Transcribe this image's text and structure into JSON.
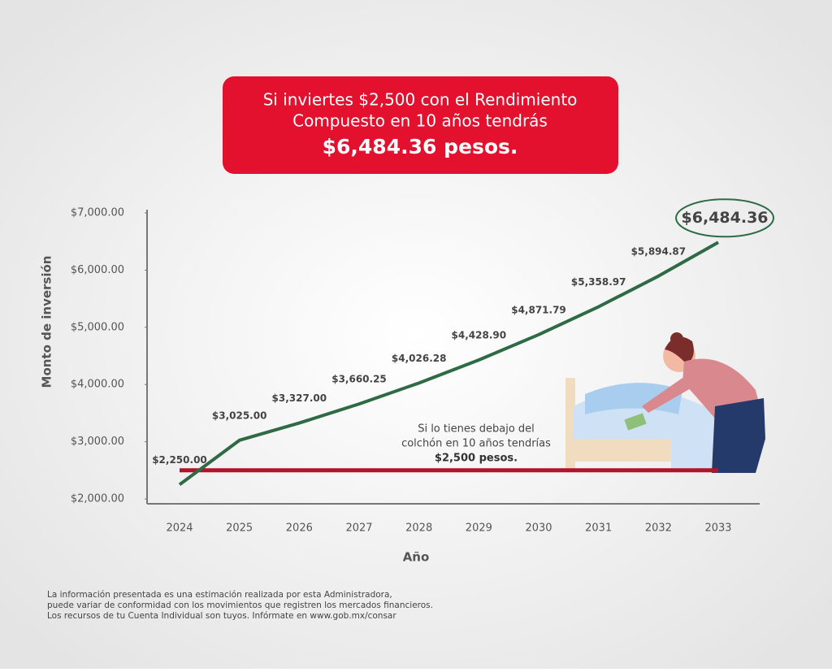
{
  "chart_data": {
    "type": "line",
    "title_lines": [
      "Si inviertes $2,500 con el Rendimiento",
      "Compuesto en 10 años tendrás"
    ],
    "title_highlight": "$6,484.36 pesos.",
    "x_label": "Año",
    "y_label": "Monto de inversión",
    "categories": [
      "2024",
      "2025",
      "2026",
      "2027",
      "2028",
      "2029",
      "2030",
      "2031",
      "2032",
      "2033"
    ],
    "series": [
      {
        "color": "#2e6b45",
        "values": [
          2250,
          3025,
          3327,
          3660.25,
          4026.28,
          4428.9,
          4871.79,
          5358.97,
          5894.87,
          6484.36
        ],
        "value_labels": [
          "$2,250.00",
          "$3,025.00",
          "$3,327.00",
          "$3,660.25",
          "$4,026.28",
          "$4,428.90",
          "$4,871.79",
          "$5,358.97",
          "$5,894.87",
          "$6,484.36"
        ]
      },
      {
        "color": "#b3112c",
        "values": [
          2500,
          2500,
          2500,
          2500,
          2500,
          2500,
          2500,
          2500,
          2500,
          2500
        ]
      }
    ],
    "ylim": [
      2000,
      7000
    ],
    "yticks": [
      {
        "value": 2000,
        "label": "$2,000.00"
      },
      {
        "value": 3000,
        "label": "$3,000.00"
      },
      {
        "value": 4000,
        "label": "$4,000.00"
      },
      {
        "value": 5000,
        "label": "$5,000.00"
      },
      {
        "value": 6000,
        "label": "$6,000.00"
      },
      {
        "value": 7000,
        "label": "$7,000.00"
      }
    ],
    "grid": false,
    "annotation_lines": [
      "Si lo tienes debajo del",
      "colchón en 10 años tendrías"
    ],
    "annotation_highlight": "$2,500 pesos.",
    "footnote": [
      "La información presentada es una estimación realizada por esta Administradora,",
      "puede variar de conformidad con los movimientos que registren los mercados financieros.",
      "Los recursos de tu Cuenta Individual son tuyos. Infórmate en www.gob.mx/consar"
    ]
  }
}
